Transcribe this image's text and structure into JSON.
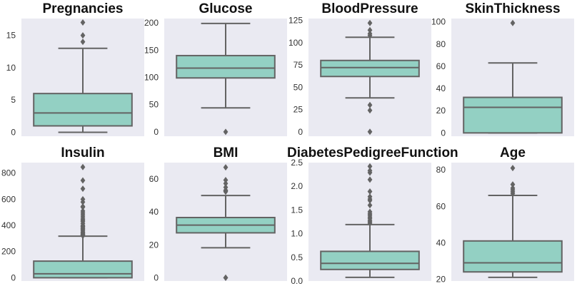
{
  "chart_data": [
    {
      "type": "box",
      "title": "Pregnancies",
      "ylim": [
        -0.6,
        17.6
      ],
      "yticks": [
        0,
        5,
        10,
        15
      ],
      "box": {
        "min": 0,
        "q1": 1,
        "median": 3,
        "q3": 6,
        "max": 13,
        "outliers": [
          14,
          15,
          17
        ]
      }
    },
    {
      "type": "box",
      "title": "Glucose",
      "ylim": [
        -8,
        208
      ],
      "yticks": [
        0,
        50,
        100,
        150,
        200
      ],
      "box": {
        "min": 44,
        "q1": 99,
        "median": 117,
        "q3": 140,
        "max": 199,
        "outliers": [
          0
        ]
      }
    },
    {
      "type": "box",
      "title": "BloodPressure",
      "ylim": [
        -5,
        127
      ],
      "yticks": [
        0,
        25,
        50,
        75,
        100,
        125
      ],
      "box": {
        "min": 38,
        "q1": 62,
        "median": 72,
        "q3": 80,
        "max": 106,
        "outliers": [
          0,
          24,
          30,
          108,
          110,
          114,
          122
        ]
      }
    },
    {
      "type": "box",
      "title": "SkinThickness",
      "ylim": [
        -3,
        103
      ],
      "yticks": [
        0,
        20,
        40,
        60,
        80,
        100
      ],
      "box": {
        "min": 0,
        "q1": 0,
        "median": 23,
        "q3": 32,
        "max": 63,
        "outliers": [
          99
        ]
      }
    },
    {
      "type": "box",
      "title": "Insulin",
      "ylim": [
        -25,
        880
      ],
      "yticks": [
        0,
        200,
        400,
        600,
        800
      ],
      "box": {
        "min": 0,
        "q1": 0,
        "median": 30,
        "q3": 127,
        "max": 318,
        "outliers": [
          321,
          325,
          330,
          335,
          342,
          350,
          360,
          370,
          375,
          385,
          392,
          400,
          415,
          430,
          440,
          450,
          465,
          480,
          495,
          510,
          540,
          545,
          579,
          600,
          680,
          744,
          846
        ]
      }
    },
    {
      "type": "box",
      "title": "BMI",
      "ylim": [
        -2,
        70
      ],
      "yticks": [
        0,
        20,
        40,
        60
      ],
      "box": {
        "min": 18.2,
        "q1": 27.3,
        "median": 32,
        "q3": 36.6,
        "max": 50,
        "outliers": [
          0,
          0,
          52.3,
          52.9,
          53.2,
          55,
          57.3,
          59.4,
          67.1
        ]
      }
    },
    {
      "type": "box",
      "title": "DiabetesPedigreeFunction",
      "ylim": [
        0,
        2.5
      ],
      "yticks": [
        0.0,
        0.5,
        1.0,
        1.5,
        2.0,
        2.5
      ],
      "ytick_labels": [
        "0.0",
        "0.5",
        "1.0",
        "1.5",
        "2.0",
        "2.5"
      ],
      "box": {
        "min": 0.078,
        "q1": 0.244,
        "median": 0.372,
        "q3": 0.626,
        "max": 1.191,
        "outliers": [
          1.22,
          1.25,
          1.28,
          1.32,
          1.35,
          1.39,
          1.42,
          1.46,
          1.6,
          1.7,
          1.73,
          1.78,
          1.89,
          2.14,
          2.29,
          2.33,
          2.42
        ]
      }
    },
    {
      "type": "box",
      "title": "Age",
      "ylim": [
        19,
        84
      ],
      "yticks": [
        20,
        40,
        60,
        80
      ],
      "box": {
        "min": 21,
        "q1": 24,
        "median": 29,
        "q3": 41,
        "max": 66,
        "outliers": [
          67,
          68,
          69,
          70,
          72,
          81
        ]
      }
    }
  ],
  "colors": {
    "background": "#eaeaf2",
    "box_fill": "#93d0c3",
    "line": "#636363",
    "text": "#111111"
  }
}
